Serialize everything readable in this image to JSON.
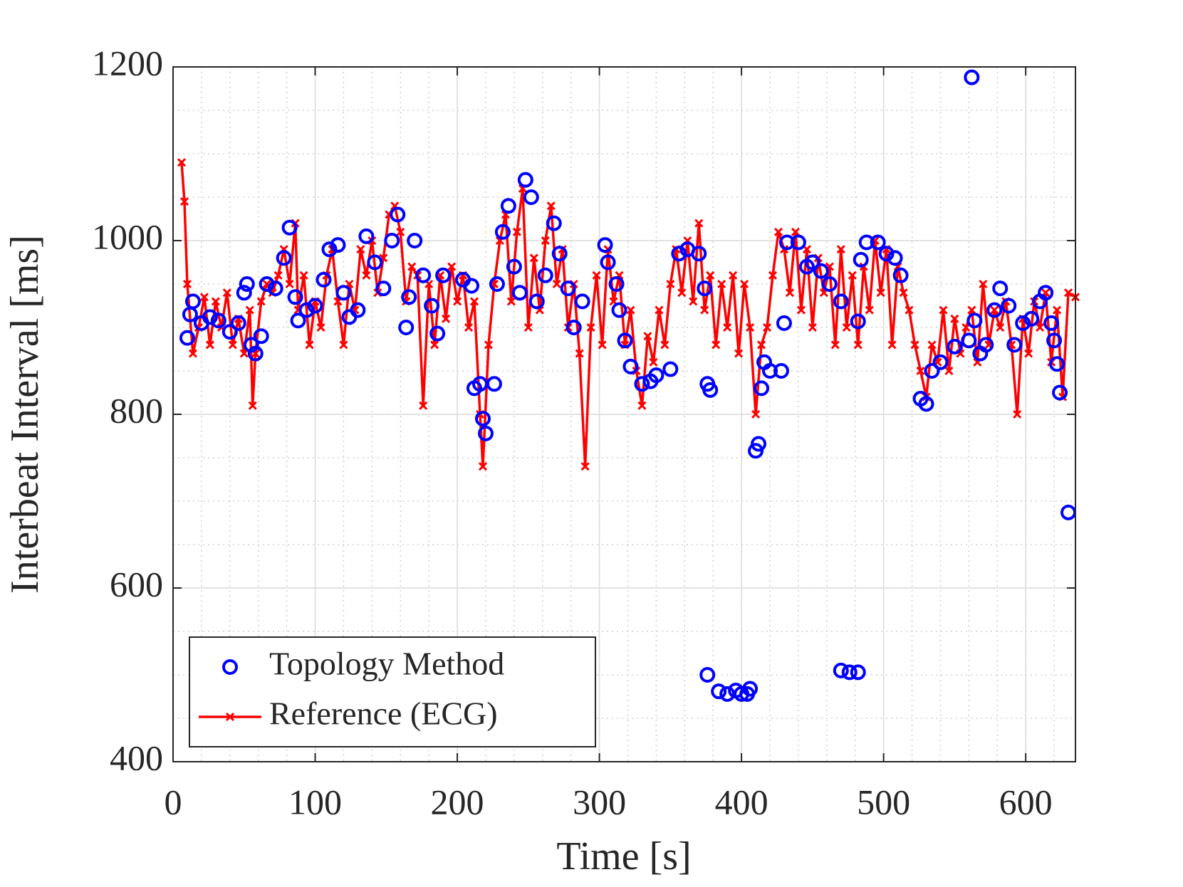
{
  "chart_data": {
    "type": "line",
    "xlabel": "Time [s]",
    "ylabel": "Interbeat Interval [ms]",
    "xlim": [
      0,
      635
    ],
    "xticks": [
      0,
      100,
      200,
      300,
      400,
      500,
      600
    ],
    "ylim": [
      400,
      1200
    ],
    "yticks": [
      400,
      600,
      800,
      1000,
      1200
    ],
    "grid": true,
    "minor_grid": true,
    "x_minor_per_major": 5,
    "y_minor_per_major": 4,
    "legend": "lower left",
    "series": [
      {
        "name": "Topology Method",
        "color": "#0000ff",
        "mode": "markers",
        "marker": "circle",
        "x": [
          10,
          12,
          14,
          20,
          26,
          32,
          40,
          46,
          50,
          52,
          55,
          58,
          62,
          66,
          72,
          78,
          82,
          86,
          88,
          94,
          100,
          106,
          110,
          116,
          120,
          124,
          130,
          136,
          142,
          148,
          154,
          158,
          164,
          166,
          170,
          176,
          182,
          186,
          190,
          204,
          210,
          212,
          216,
          218,
          220,
          226,
          228,
          232,
          236,
          240,
          244,
          248,
          252,
          256,
          262,
          268,
          272,
          278,
          282,
          288,
          304,
          306,
          312,
          314,
          318,
          322,
          330,
          336,
          340,
          350,
          356,
          362,
          370,
          374,
          376,
          378,
          376,
          384,
          390,
          396,
          400,
          404,
          406,
          410,
          412,
          414,
          416,
          420,
          428,
          430,
          432,
          440,
          446,
          450,
          456,
          462,
          470,
          470,
          476,
          482,
          482,
          484,
          488,
          496,
          502,
          508,
          512,
          526,
          530,
          534,
          540,
          550,
          560,
          562,
          564,
          568,
          572,
          578,
          582,
          588,
          592,
          598,
          604,
          610,
          614,
          618,
          620,
          622,
          624,
          630
        ],
        "values": [
          888,
          915,
          930,
          905,
          912,
          908,
          895,
          905,
          940,
          950,
          880,
          870,
          890,
          950,
          945,
          980,
          1015,
          935,
          908,
          920,
          925,
          955,
          990,
          995,
          940,
          912,
          920,
          1005,
          975,
          945,
          1000,
          1030,
          900,
          935,
          1000,
          960,
          925,
          893,
          960,
          955,
          948,
          830,
          835,
          795,
          778,
          835,
          950,
          1010,
          1040,
          970,
          940,
          1070,
          1050,
          930,
          960,
          1020,
          985,
          945,
          900,
          930,
          995,
          975,
          950,
          920,
          885,
          855,
          835,
          838,
          845,
          852,
          985,
          990,
          985,
          945,
          835,
          828,
          500,
          481,
          478,
          482,
          478,
          478,
          484,
          758,
          766,
          830,
          860,
          850,
          850,
          905,
          998,
          998,
          970,
          975,
          965,
          950,
          930,
          505,
          503,
          503,
          907,
          978,
          998,
          998,
          985,
          980,
          960,
          818,
          812,
          850,
          860,
          878,
          885,
          1188,
          908,
          870,
          880,
          920,
          945,
          925,
          880,
          905,
          910,
          930,
          940,
          905,
          885,
          858,
          825,
          687
        ]
      },
      {
        "name": "Reference (ECG)",
        "color": "#ff0000",
        "mode": "lines+markers",
        "marker": "x",
        "x": [
          6,
          8,
          10,
          14,
          18,
          22,
          26,
          30,
          34,
          38,
          42,
          46,
          50,
          54,
          56,
          58,
          62,
          66,
          70,
          74,
          78,
          82,
          86,
          88,
          92,
          96,
          100,
          104,
          108,
          112,
          116,
          120,
          124,
          128,
          132,
          136,
          140,
          144,
          148,
          152,
          156,
          160,
          164,
          168,
          172,
          176,
          180,
          184,
          188,
          192,
          196,
          200,
          204,
          208,
          212,
          216,
          218,
          222,
          226,
          230,
          234,
          238,
          242,
          246,
          250,
          254,
          258,
          262,
          266,
          270,
          274,
          278,
          282,
          286,
          290,
          294,
          298,
          302,
          306,
          310,
          314,
          318,
          322,
          326,
          330,
          334,
          338,
          342,
          346,
          350,
          354,
          358,
          362,
          366,
          370,
          374,
          378,
          382,
          386,
          390,
          394,
          398,
          402,
          406,
          410,
          414,
          418,
          422,
          426,
          430,
          434,
          438,
          442,
          446,
          450,
          454,
          458,
          462,
          466,
          470,
          474,
          478,
          482,
          486,
          490,
          494,
          498,
          502,
          506,
          510,
          514,
          518,
          522,
          526,
          530,
          534,
          538,
          542,
          546,
          550,
          554,
          558,
          562,
          566,
          570,
          574,
          578,
          582,
          586,
          590,
          594,
          598,
          602,
          606,
          610,
          614,
          618,
          622,
          626,
          630,
          635
        ],
        "values": [
          1090,
          1045,
          950,
          870,
          900,
          935,
          880,
          930,
          900,
          940,
          880,
          910,
          870,
          920,
          810,
          870,
          930,
          950,
          940,
          960,
          990,
          950,
          1020,
          920,
          960,
          880,
          930,
          900,
          960,
          990,
          930,
          880,
          950,
          920,
          990,
          960,
          1000,
          940,
          980,
          1030,
          1040,
          1010,
          930,
          970,
          960,
          810,
          950,
          880,
          960,
          910,
          970,
          930,
          960,
          900,
          930,
          800,
          740,
          880,
          950,
          1000,
          1030,
          930,
          1010,
          1060,
          900,
          980,
          920,
          1000,
          1040,
          950,
          990,
          900,
          950,
          870,
          740,
          900,
          960,
          880,
          990,
          930,
          960,
          880,
          920,
          850,
          810,
          890,
          860,
          920,
          880,
          950,
          990,
          940,
          1000,
          930,
          1020,
          920,
          960,
          880,
          950,
          900,
          960,
          870,
          950,
          900,
          800,
          880,
          900,
          960,
          1010,
          990,
          940,
          1010,
          920,
          990,
          900,
          980,
          940,
          970,
          880,
          990,
          900,
          960,
          880,
          970,
          920,
          1000,
          940,
          990,
          880,
          970,
          940,
          920,
          880,
          850,
          820,
          880,
          860,
          920,
          850,
          910,
          870,
          900,
          920,
          860,
          950,
          880,
          920,
          900,
          930,
          880,
          800,
          910,
          870,
          930,
          900,
          940,
          860,
          920,
          820,
          940,
          935
        ]
      }
    ]
  }
}
